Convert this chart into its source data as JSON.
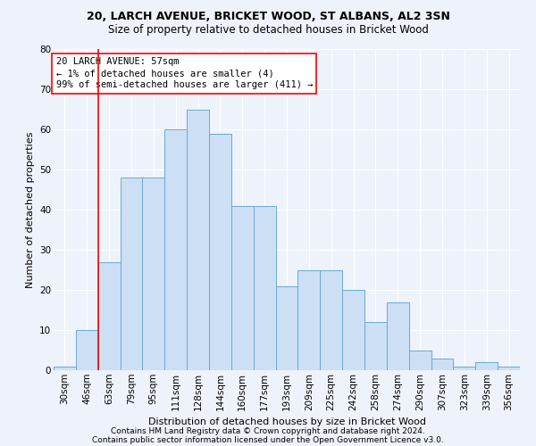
{
  "title1": "20, LARCH AVENUE, BRICKET WOOD, ST ALBANS, AL2 3SN",
  "title2": "Size of property relative to detached houses in Bricket Wood",
  "xlabel": "Distribution of detached houses by size in Bricket Wood",
  "ylabel": "Number of detached properties",
  "categories": [
    "30sqm",
    "46sqm",
    "63sqm",
    "79sqm",
    "95sqm",
    "111sqm",
    "128sqm",
    "144sqm",
    "160sqm",
    "177sqm",
    "193sqm",
    "209sqm",
    "225sqm",
    "242sqm",
    "258sqm",
    "274sqm",
    "290sqm",
    "307sqm",
    "323sqm",
    "339sqm",
    "356sqm"
  ],
  "values": [
    1,
    10,
    27,
    48,
    48,
    60,
    65,
    59,
    41,
    41,
    21,
    25,
    25,
    20,
    12,
    17,
    5,
    3,
    1,
    2,
    1
  ],
  "bar_color": "#ccdff5",
  "bar_edge_color": "#6aaad4",
  "ylim": [
    0,
    80
  ],
  "yticks": [
    0,
    10,
    20,
    30,
    40,
    50,
    60,
    70,
    80
  ],
  "red_line_x": 2,
  "annotation_box_text": "20 LARCH AVENUE: 57sqm\n← 1% of detached houses are smaller (4)\n99% of semi-detached houses are larger (411) →",
  "footer1": "Contains HM Land Registry data © Crown copyright and database right 2024.",
  "footer2": "Contains public sector information licensed under the Open Government Licence v3.0.",
  "bg_color": "#eef2fa",
  "grid_color": "#ffffff",
  "title1_fontsize": 9,
  "title2_fontsize": 8.5,
  "ylabel_fontsize": 8,
  "xlabel_fontsize": 8,
  "tick_fontsize": 7.5,
  "footer_fontsize": 6.5,
  "annot_fontsize": 7.5
}
